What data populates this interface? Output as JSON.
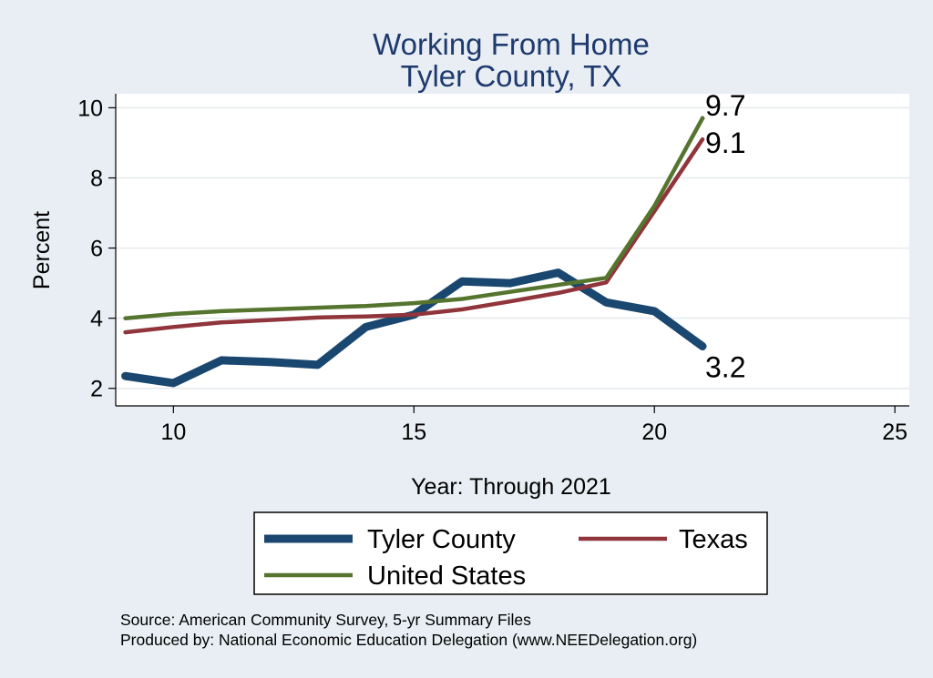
{
  "chart_data": {
    "type": "line",
    "title": "Working From Home",
    "subtitle": "Tyler County, TX",
    "xlabel": "Year: Through 2021",
    "ylabel": "Percent",
    "xlim": [
      8.8,
      25.3
    ],
    "ylim": [
      1.5,
      10.4
    ],
    "xticks": [
      10,
      15,
      20,
      25
    ],
    "yticks": [
      2,
      4,
      6,
      8,
      10
    ],
    "grid": true,
    "legend_position": "bottom",
    "series": [
      {
        "name": "Tyler County",
        "color": "#1a476f",
        "x": [
          9,
          10,
          11,
          12,
          13,
          14,
          15,
          16,
          17,
          18,
          19,
          20,
          21
        ],
        "values": [
          2.35,
          2.15,
          2.8,
          2.75,
          2.67,
          3.75,
          4.1,
          5.05,
          5.0,
          5.3,
          4.45,
          4.2,
          3.2
        ],
        "end_label": "3.2"
      },
      {
        "name": "Texas",
        "color": "#90353b",
        "x": [
          9,
          10,
          11,
          12,
          13,
          14,
          15,
          16,
          17,
          18,
          19,
          20,
          21
        ],
        "values": [
          3.6,
          3.75,
          3.88,
          3.95,
          4.02,
          4.05,
          4.1,
          4.25,
          4.48,
          4.72,
          5.02,
          7.05,
          9.1
        ],
        "end_label": "9.1"
      },
      {
        "name": "United States",
        "color": "#55752f",
        "x": [
          9,
          10,
          11,
          12,
          13,
          14,
          15,
          16,
          17,
          18,
          19,
          20,
          21
        ],
        "values": [
          4.0,
          4.12,
          4.2,
          4.25,
          4.3,
          4.35,
          4.43,
          4.55,
          4.75,
          4.95,
          5.15,
          7.2,
          9.7
        ],
        "end_label": "9.7"
      }
    ],
    "source_lines": [
      "Source: American Community Survey, 5-yr Summary Files",
      "Produced by: National Economic Education Delegation (www.NEEDelegation.org)"
    ]
  }
}
